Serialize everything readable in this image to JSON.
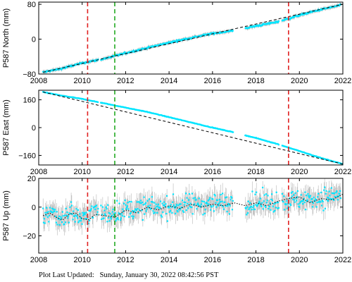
{
  "colors": {
    "data": "#00e5ff",
    "error_bar": "#a8a8a8",
    "model": "#000000",
    "event_red": "#e02020",
    "event_green": "#22aa22",
    "axis": "#000000"
  },
  "footer": {
    "label": "Plot Last Updated:",
    "timestamp": "Sunday, January 30, 2022 08:42:56 PST"
  },
  "chart_data": [
    {
      "type": "scatter",
      "station": "P587",
      "ylabel": "P587 North (mm)",
      "xlim": [
        2008,
        2022
      ],
      "ylim": [
        -80,
        85
      ],
      "xticks": [
        2008,
        2010,
        2012,
        2014,
        2016,
        2018,
        2020,
        2022
      ],
      "yticks": [
        -80,
        0,
        80
      ],
      "ytick_labels": [
        "−80",
        "0",
        "80"
      ],
      "event_lines": [
        {
          "x": 2010.25,
          "color": "red"
        },
        {
          "x": 2011.5,
          "color": "green"
        },
        {
          "x": 2019.5,
          "color": "red"
        }
      ],
      "data_gaps": [
        [
          2010.75,
          2010.85
        ],
        [
          2016.95,
          2017.5
        ],
        [
          2019.05,
          2019.2
        ]
      ],
      "series": [
        {
          "kind": "observed",
          "x": [
            2008.2,
            2009.0,
            2010.0,
            2010.5,
            2011.0,
            2012.0,
            2013.0,
            2014.0,
            2015.0,
            2016.0,
            2016.9,
            2018.0,
            2019.0,
            2019.5,
            2020.0,
            2021.0,
            2021.9
          ],
          "y": [
            -76,
            -68,
            -55,
            -50,
            -45,
            -32,
            -20,
            -8,
            3,
            13,
            19,
            30,
            40,
            47,
            55,
            68,
            78
          ],
          "error": 4
        },
        {
          "kind": "model",
          "x": [
            2008.2,
            2022.0
          ],
          "y": [
            -76,
            80
          ]
        }
      ]
    },
    {
      "type": "scatter",
      "station": "P587",
      "ylabel": "P587 East (mm)",
      "xlim": [
        2008,
        2022
      ],
      "ylim": [
        -215,
        215
      ],
      "xticks": [
        2008,
        2010,
        2012,
        2014,
        2016,
        2018,
        2020,
        2022
      ],
      "yticks": [
        -160,
        0,
        160
      ],
      "ytick_labels": [
        "−160",
        "0",
        "160"
      ],
      "event_lines": [
        {
          "x": 2010.25,
          "color": "red"
        },
        {
          "x": 2011.5,
          "color": "green"
        },
        {
          "x": 2019.5,
          "color": "red"
        }
      ],
      "data_gaps": [
        [
          2010.75,
          2010.85
        ],
        [
          2016.95,
          2017.5
        ],
        [
          2019.05,
          2019.2
        ]
      ],
      "series": [
        {
          "kind": "observed",
          "x": [
            2008.2,
            2009.0,
            2010.0,
            2011.0,
            2012.0,
            2013.0,
            2014.0,
            2015.0,
            2016.0,
            2016.9,
            2018.0,
            2019.0,
            2020.0,
            2021.0,
            2022.0
          ],
          "y": [
            205,
            185,
            165,
            140,
            115,
            90,
            60,
            30,
            0,
            -25,
            -60,
            -95,
            -135,
            -175,
            -210
          ],
          "error": 3
        },
        {
          "kind": "model",
          "x": [
            2008.2,
            2022.0
          ],
          "y": [
            205,
            -210
          ]
        }
      ]
    },
    {
      "type": "scatter",
      "station": "P587",
      "ylabel": "P587 Up (mm)",
      "xlim": [
        2008,
        2022
      ],
      "ylim": [
        -32,
        20
      ],
      "xticks": [
        2008,
        2010,
        2012,
        2014,
        2016,
        2018,
        2020,
        2022
      ],
      "yticks": [
        -20,
        0,
        20
      ],
      "ytick_labels": [
        "−20",
        "0",
        "20"
      ],
      "event_lines": [
        {
          "x": 2010.25,
          "color": "red"
        },
        {
          "x": 2011.5,
          "color": "green"
        },
        {
          "x": 2019.5,
          "color": "red"
        }
      ],
      "data_gaps": [
        [
          2010.75,
          2010.85
        ],
        [
          2016.95,
          2017.5
        ],
        [
          2019.05,
          2019.2
        ]
      ],
      "series": [
        {
          "kind": "observed",
          "x": [
            2008.2,
            2008.6,
            2009.0,
            2009.5,
            2010.0,
            2010.5,
            2011.0,
            2012.0,
            2013.0,
            2014.0,
            2015.0,
            2016.0,
            2016.9,
            2018.0,
            2019.0,
            2020.0,
            2021.0,
            2021.9
          ],
          "y": [
            -6,
            -3,
            -8,
            -3,
            -9,
            -2,
            -5,
            -2,
            0,
            0,
            2,
            3,
            3,
            3,
            4,
            5,
            6,
            9
          ],
          "error": 6,
          "scatter": 7
        },
        {
          "kind": "model",
          "x": [
            2008.2,
            2008.5,
            2008.8,
            2009.1,
            2009.4,
            2009.7,
            2010.0,
            2010.3,
            2010.6,
            2011.5,
            2012.0,
            2012.5,
            2013.0,
            2013.5,
            2014.0,
            2014.5,
            2015.0,
            2015.5,
            2016.0,
            2016.5,
            2017.0,
            2017.5,
            2018.0,
            2018.5,
            2019.0,
            2019.5,
            2020.0,
            2020.5,
            2021.0,
            2021.5,
            2022.0
          ],
          "y": [
            -6,
            -4,
            -7,
            -9,
            -5,
            -4,
            -8,
            -9,
            -5,
            -7,
            -2,
            -4,
            0,
            -2,
            1,
            -1,
            2,
            0,
            2,
            1,
            3,
            1,
            3,
            1,
            4,
            6,
            7,
            3,
            6,
            5,
            9
          ]
        }
      ]
    }
  ]
}
